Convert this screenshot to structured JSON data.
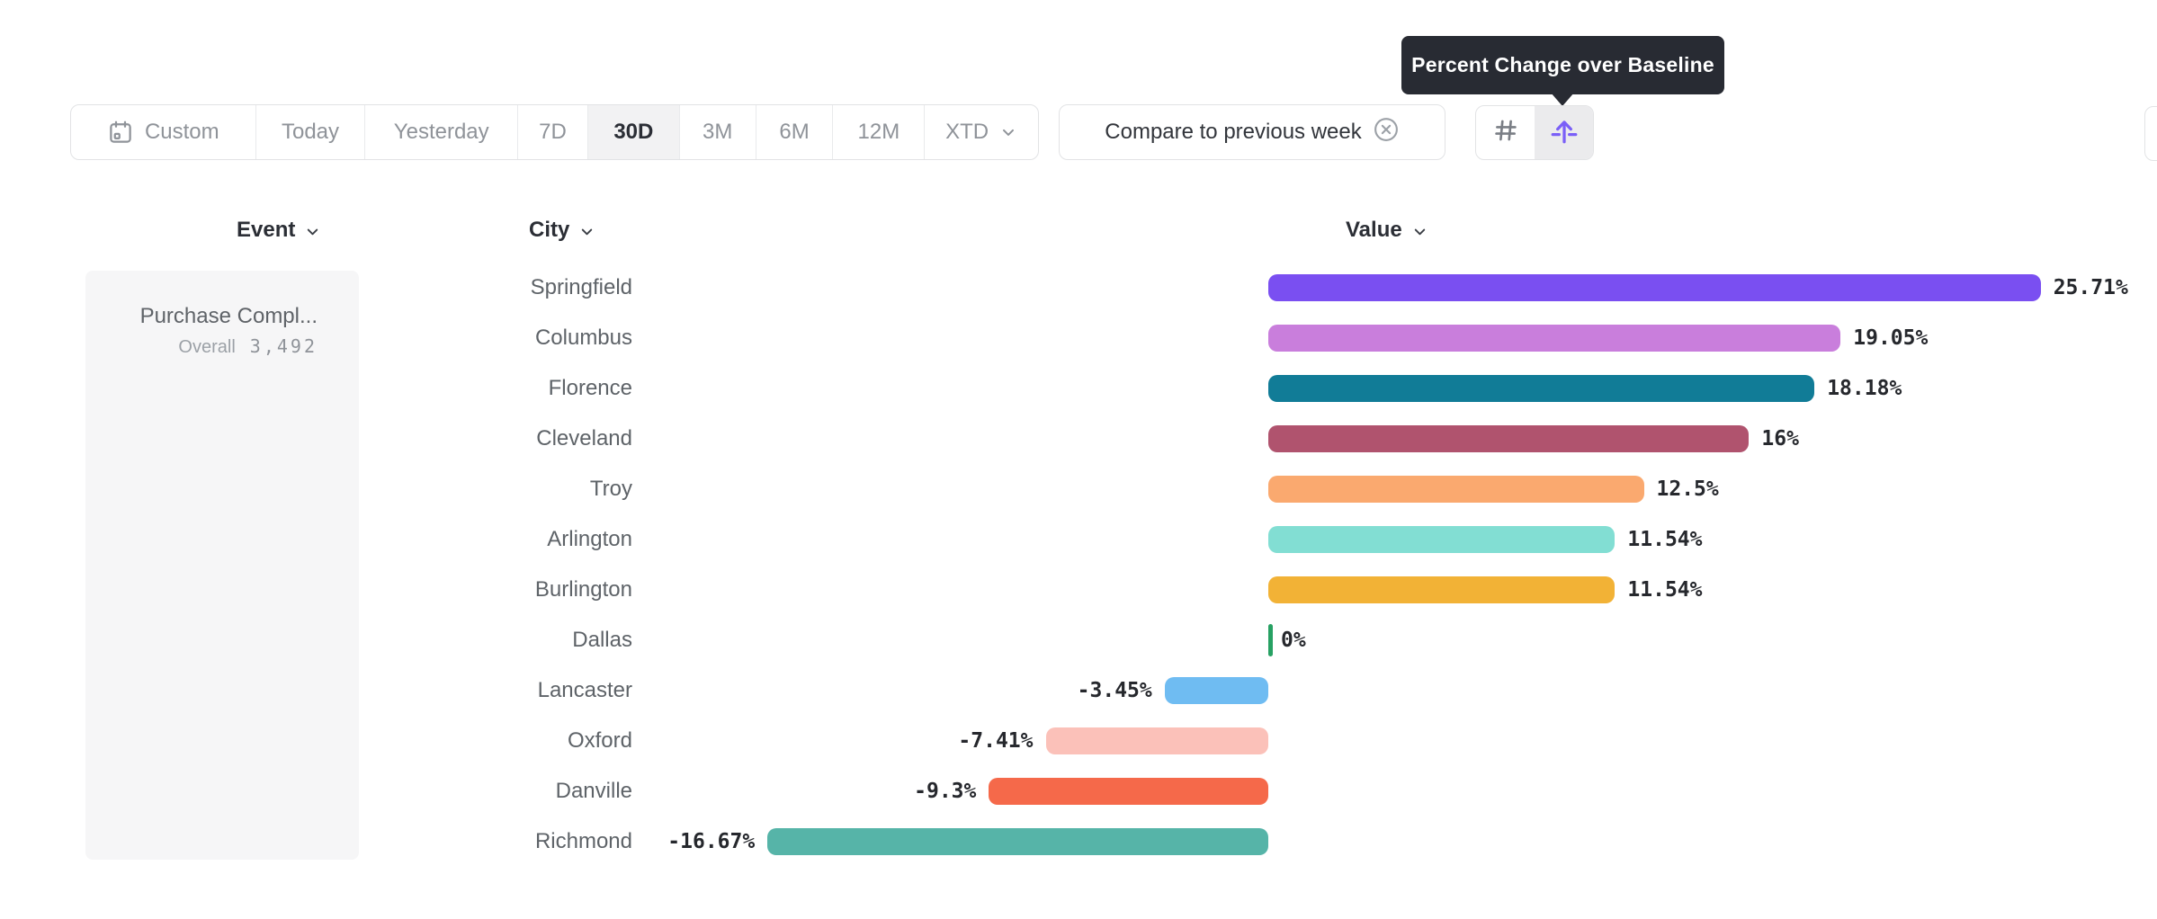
{
  "tooltip": {
    "text": "Percent Change over Baseline"
  },
  "toolbar": {
    "date_ranges": [
      {
        "label": "Custom",
        "icon": "calendar-icon",
        "selected": false
      },
      {
        "label": "Today",
        "selected": false
      },
      {
        "label": "Yesterday",
        "selected": false
      },
      {
        "label": "7D",
        "selected": false
      },
      {
        "label": "30D",
        "selected": true
      },
      {
        "label": "3M",
        "selected": false
      },
      {
        "label": "6M",
        "selected": false
      },
      {
        "label": "12M",
        "selected": false
      },
      {
        "label": "XTD",
        "icon": "chevron-down-icon",
        "selected": false
      }
    ],
    "compare_chip": {
      "label": "Compare to previous week",
      "icon": "circle-x-icon"
    },
    "view_toggle": [
      {
        "name": "grid-view",
        "icon": "hash-icon",
        "selected": false
      },
      {
        "name": "baseline-view",
        "icon": "arrow-up-from-line-icon",
        "selected": true
      }
    ]
  },
  "table": {
    "headers": [
      {
        "label": "Event"
      },
      {
        "label": "City"
      },
      {
        "label": "Value"
      }
    ]
  },
  "event_panel": {
    "event_name": "Purchase Compl...",
    "overall_label": "Overall",
    "overall_value": "3,492"
  },
  "chart_data": {
    "type": "bar",
    "orientation": "horizontal",
    "title": "Percent Change over Baseline",
    "categories": [
      "Springfield",
      "Columbus",
      "Florence",
      "Cleveland",
      "Troy",
      "Arlington",
      "Burlington",
      "Dallas",
      "Lancaster",
      "Oxford",
      "Danville",
      "Richmond"
    ],
    "values": [
      25.71,
      19.05,
      18.18,
      16,
      12.5,
      11.54,
      11.54,
      0,
      -3.45,
      -7.41,
      -9.3,
      -16.67
    ],
    "labels": [
      "25.71%",
      "19.05%",
      "18.18%",
      "16%",
      "12.5%",
      "11.54%",
      "11.54%",
      "0%",
      "-3.45%",
      "-7.41%",
      "-9.3%",
      "-16.67%"
    ],
    "colors": [
      "#7A4FF1",
      "#C97EDC",
      "#117C97",
      "#B0536E",
      "#FAA96F",
      "#82DED3",
      "#F2B236",
      "#27A163",
      "#6FBCF2",
      "#FBC1B9",
      "#F5694A",
      "#56B4A8"
    ],
    "unit": "%",
    "xlim": [
      -16.67,
      25.71
    ],
    "grid": false,
    "legend": false
  },
  "ui_colors": {
    "tooltip_bg": "#282B33",
    "accent_purple": "#7A5FF7",
    "selected_segment_bg": "#F2F2F3",
    "border": "#E2E3E5",
    "text_dark": "#2B2E35",
    "text_muted": "#8F9399",
    "zero_tick_green": "#27A163"
  }
}
